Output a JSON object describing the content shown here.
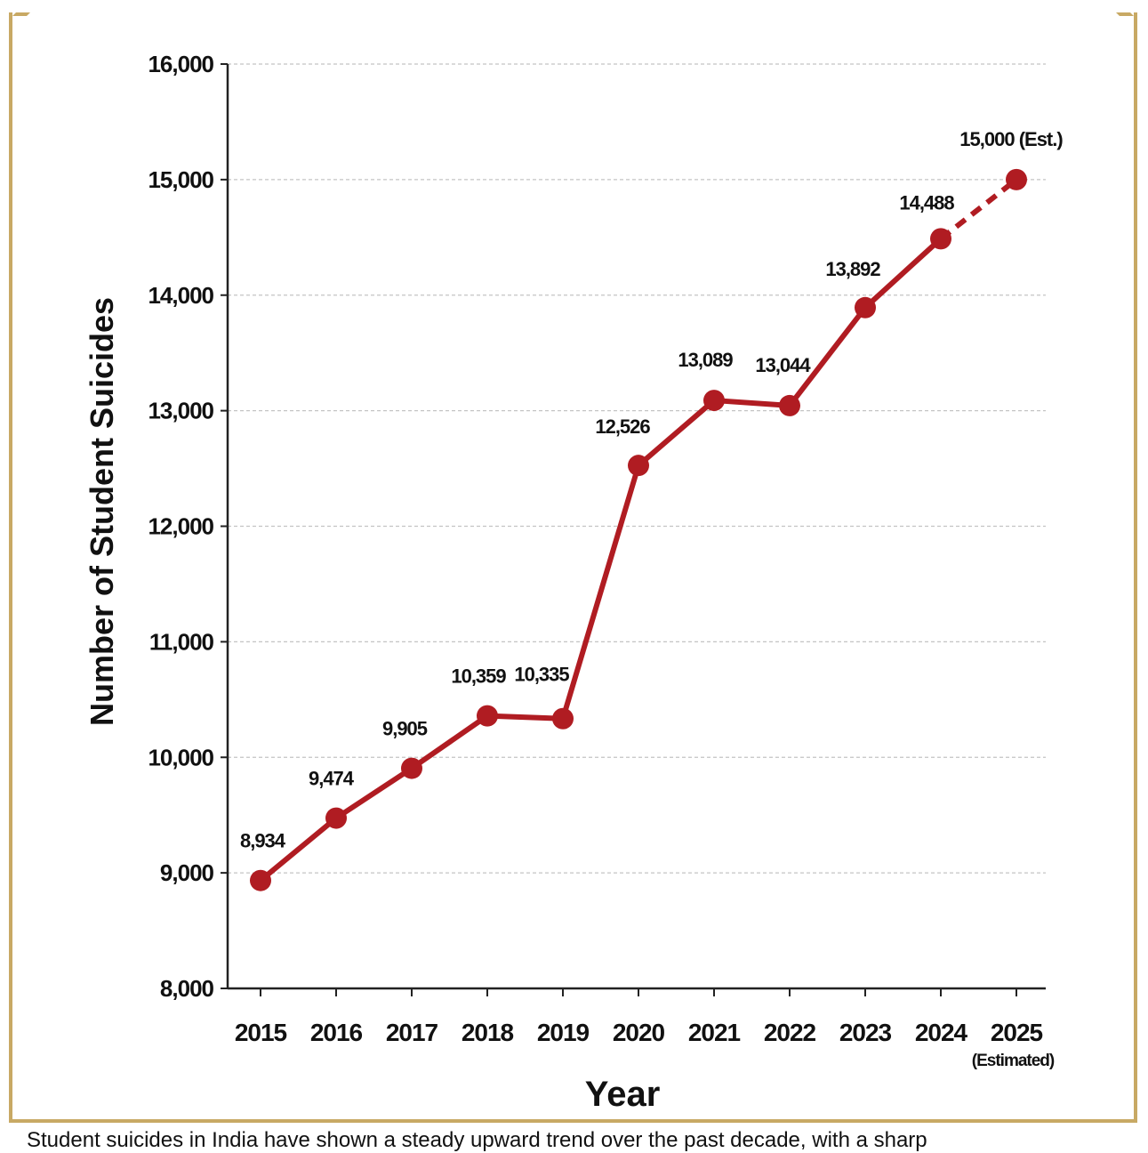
{
  "chart_data": {
    "type": "line",
    "title": "",
    "xlabel": "Year",
    "ylabel": "Number of Student Suicides",
    "categories": [
      "2015",
      "2016",
      "2017",
      "2018",
      "2019",
      "2020",
      "2021",
      "2022",
      "2023",
      "2024",
      "2025"
    ],
    "category_sublabels": [
      "",
      "",
      "",
      "",
      "",
      "",
      "",
      "",
      "",
      "",
      "(Estimated)"
    ],
    "series": [
      {
        "values": [
          8934,
          9474,
          9905,
          10359,
          10335,
          12526,
          13089,
          13044,
          13892,
          14488,
          15000
        ],
        "data_labels": [
          "8,934",
          "9,474",
          "9,905",
          "10,359",
          "10,335",
          "12,526",
          "13,089",
          "13,044",
          "13,892",
          "14,488",
          "15,000 (Est.)"
        ],
        "estimated_from_index": 9
      }
    ],
    "ylim": [
      8000,
      16000
    ],
    "yticks": [
      8000,
      9000,
      10000,
      11000,
      12000,
      13000,
      14000,
      15000,
      16000
    ],
    "ytick_labels": [
      "8,000",
      "9,000",
      "10,000",
      "11,000",
      "12,000",
      "13,000",
      "14,000",
      "15,000",
      "16,000"
    ],
    "grid": true,
    "colors": {
      "line": "#b01c22",
      "grid": "#c4c4c4",
      "axis": "#222222",
      "frame": "#c8a964"
    }
  },
  "caption": "Student suicides in India have shown a steady upward trend over the past decade, with a sharp"
}
